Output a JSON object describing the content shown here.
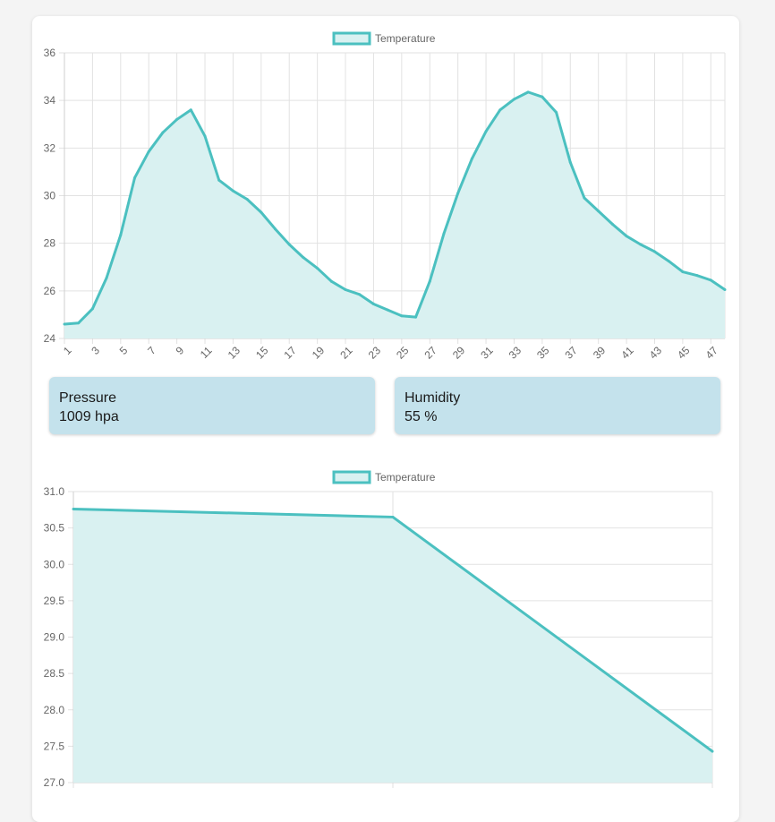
{
  "panel": {
    "pressure": {
      "label": "Pressure",
      "value": "1009 hpa"
    },
    "humidity": {
      "label": "Humidity",
      "value": "55 %"
    }
  },
  "colors": {
    "line": "#4bc0c0",
    "fill": "#d9f1f1",
    "grid": "#e2e2e2",
    "card": "#ffffff",
    "panel_box": "#c4e2ec"
  },
  "chart_data": [
    {
      "type": "area",
      "title": "",
      "legend": {
        "position": "top",
        "entries": [
          "Temperature"
        ]
      },
      "grid": true,
      "x_tick_labels_rotated": true,
      "x": [
        1,
        2,
        3,
        4,
        5,
        6,
        7,
        8,
        9,
        10,
        11,
        12,
        13,
        14,
        15,
        16,
        17,
        18,
        19,
        20,
        21,
        22,
        23,
        24,
        25,
        26,
        27,
        28,
        29,
        30,
        31,
        32,
        33,
        34,
        35,
        36,
        37,
        38,
        39,
        40,
        41,
        42,
        43,
        44,
        45,
        46,
        47,
        48
      ],
      "x_tick_labels": [
        "1",
        "3",
        "5",
        "7",
        "9",
        "11",
        "13",
        "15",
        "17",
        "19",
        "21",
        "23",
        "25",
        "27",
        "29",
        "31",
        "33",
        "35",
        "37",
        "39",
        "41",
        "43",
        "45",
        "47"
      ],
      "series": [
        {
          "name": "Temperature",
          "values": [
            24.6,
            24.65,
            25.25,
            26.55,
            28.35,
            30.75,
            31.85,
            32.65,
            33.2,
            33.6,
            32.5,
            30.65,
            30.2,
            29.85,
            29.3,
            28.6,
            27.95,
            27.4,
            26.95,
            26.4,
            26.05,
            25.85,
            25.45,
            25.2,
            24.95,
            24.9,
            26.4,
            28.4,
            30.1,
            31.55,
            32.7,
            33.6,
            34.05,
            34.35,
            34.15,
            33.5,
            31.4,
            29.9,
            29.35,
            28.8,
            28.3,
            27.95,
            27.65,
            27.25,
            26.8,
            26.65,
            26.45,
            26.05
          ]
        }
      ],
      "ylim": [
        24,
        36
      ],
      "y_ticks": [
        24,
        26,
        28,
        30,
        32,
        34,
        36
      ],
      "xlabel": "",
      "ylabel": ""
    },
    {
      "type": "area",
      "title": "",
      "legend": {
        "position": "top",
        "entries": [
          "Temperature"
        ]
      },
      "grid": true,
      "x": [
        1,
        2,
        3
      ],
      "series": [
        {
          "name": "Temperature",
          "values": [
            30.76,
            30.65,
            27.43
          ]
        }
      ],
      "ylim": [
        27.0,
        31.0
      ],
      "y_ticks": [
        27.0,
        27.5,
        28.0,
        28.5,
        29.0,
        29.5,
        30.0,
        30.5,
        31.0
      ],
      "xlabel": "",
      "ylabel": ""
    }
  ]
}
